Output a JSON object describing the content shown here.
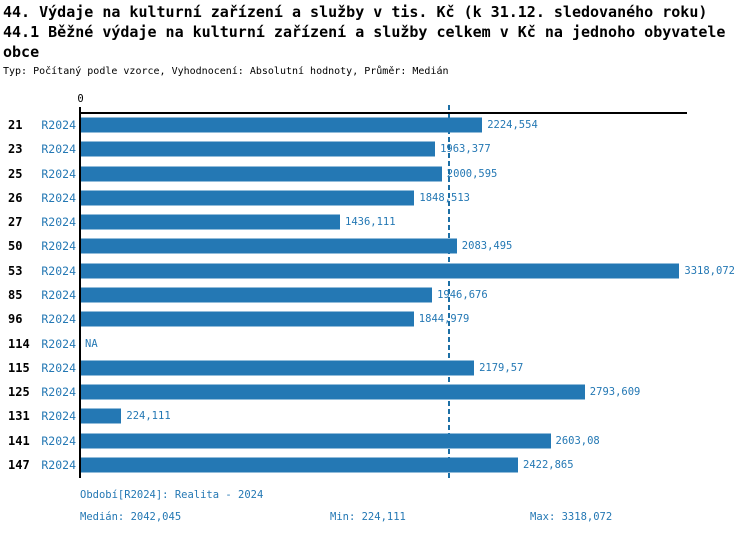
{
  "header": {
    "title_line1": "44. Výdaje na kulturní zařízení a služby v tis. Kč (k 31.12. sledovaného roku)",
    "title_line2": "44.1 Běžné výdaje na kulturní zařízení a služby celkem v Kč na jednoho obyvatele obce",
    "meta": "Typ: Počítaný podle vzorce, Vyhodnocení: Absolutní hodnoty, Průměr: Medián"
  },
  "chart_data": {
    "type": "bar",
    "orientation": "horizontal",
    "title": "44.1 Běžné výdaje na kulturní zařízení a služby celkem v Kč na jednoho obyvatele obce",
    "axis_tick_label": "0",
    "series_label": "R2024",
    "categories": [
      "21",
      "23",
      "25",
      "26",
      "27",
      "50",
      "53",
      "85",
      "96",
      "114",
      "115",
      "125",
      "131",
      "141",
      "147"
    ],
    "values": [
      2224.554,
      1963.377,
      2000.595,
      1848.513,
      1436.111,
      2083.495,
      3318.072,
      1946.676,
      1844.979,
      null,
      2179.57,
      2793.609,
      224.111,
      2603.08,
      2422.865
    ],
    "value_labels": [
      "2224,554",
      "1963,377",
      "2000,595",
      "1848,513",
      "1436,111",
      "2083,495",
      "3318,072",
      "1946,676",
      "1844,979",
      "NA",
      "2179,57",
      "2793,609",
      "224,111",
      "2603,08",
      "2422,865"
    ],
    "xlim": [
      0,
      3360
    ],
    "grid": false,
    "legend": false,
    "median_value": 2042.045,
    "bar_color": "#2478b4",
    "median_line_color": "#1d6fa5",
    "label_color": "#2478b4"
  },
  "footer": {
    "period": "Období[R2024]: Realita - 2024",
    "median": "Medián: 2042,045",
    "min": "Min: 224,111",
    "max": "Max: 3318,072"
  }
}
